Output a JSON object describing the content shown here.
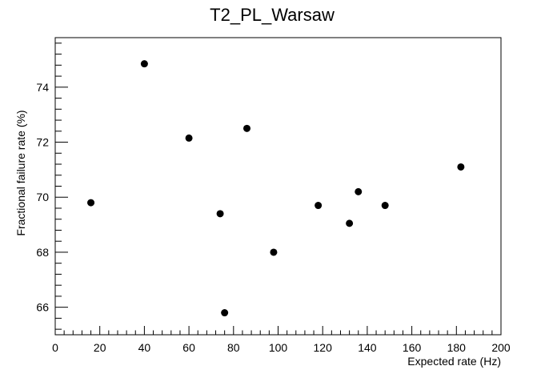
{
  "chart_data": {
    "type": "scatter",
    "title": "T2_PL_Warsaw",
    "xlabel": "Expected rate (Hz)",
    "ylabel": "Fractional failure rate (%)",
    "xlim": [
      0,
      200
    ],
    "ylim": [
      65,
      75.8
    ],
    "x_ticks": [
      0,
      20,
      40,
      60,
      80,
      100,
      120,
      140,
      160,
      180,
      200
    ],
    "y_ticks": [
      66,
      68,
      70,
      72,
      74
    ],
    "marker_color": "#000000",
    "grid": false,
    "points": [
      {
        "x": 16,
        "y": 69.8
      },
      {
        "x": 40,
        "y": 74.85
      },
      {
        "x": 60,
        "y": 72.15
      },
      {
        "x": 74,
        "y": 69.4
      },
      {
        "x": 76,
        "y": 65.8
      },
      {
        "x": 86,
        "y": 72.5
      },
      {
        "x": 98,
        "y": 68.0
      },
      {
        "x": 118,
        "y": 69.7
      },
      {
        "x": 132,
        "y": 69.05
      },
      {
        "x": 136,
        "y": 70.2
      },
      {
        "x": 148,
        "y": 69.7
      },
      {
        "x": 182,
        "y": 71.1
      }
    ]
  }
}
